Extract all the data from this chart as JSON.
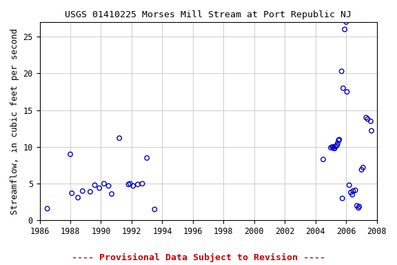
{
  "title": "USGS 01410225 Morses Mill Stream at Port Republic NJ",
  "xlabel": "",
  "ylabel": "Streamflow, in cubic feet per second",
  "xlim": [
    1986,
    2008
  ],
  "ylim": [
    0,
    27
  ],
  "yticks": [
    0,
    5,
    10,
    15,
    20,
    25
  ],
  "xticks": [
    1986,
    1988,
    1990,
    1992,
    1994,
    1996,
    1998,
    2000,
    2002,
    2004,
    2006,
    2008
  ],
  "footnote": "---- Provisional Data Subject to Revision ----",
  "footnote_color": "#cc0000",
  "marker_color": "#0000cc",
  "background_color": "#ffffff",
  "grid_color": "#cccccc",
  "x": [
    1986.5,
    1988.0,
    1988.1,
    1988.5,
    1988.8,
    1989.3,
    1989.6,
    1989.9,
    1990.2,
    1990.5,
    1990.7,
    1991.2,
    1991.8,
    1991.9,
    1992.1,
    1992.4,
    1992.7,
    1993.0,
    1993.5,
    2004.5,
    2005.0,
    2005.1,
    2005.15,
    2005.2,
    2005.25,
    2005.3,
    2005.4,
    2005.45,
    2005.5,
    2005.55,
    2005.7,
    2005.75,
    2005.8,
    2005.9,
    2006.0,
    2006.05,
    2006.2,
    2006.3,
    2006.4,
    2006.45,
    2006.6,
    2006.7,
    2006.8,
    2006.85,
    2007.0,
    2007.1,
    2007.3,
    2007.4,
    2007.6,
    2007.65
  ],
  "y": [
    1.6,
    9.0,
    3.7,
    3.1,
    4.0,
    3.9,
    4.8,
    4.4,
    5.0,
    4.7,
    3.6,
    11.2,
    4.9,
    5.0,
    4.7,
    4.9,
    5.0,
    8.5,
    1.5,
    8.3,
    9.9,
    10.0,
    10.0,
    9.8,
    9.8,
    10.1,
    10.2,
    10.5,
    10.9,
    11.0,
    20.3,
    3.0,
    18.0,
    26.0,
    27.0,
    17.5,
    4.8,
    3.8,
    3.5,
    4.0,
    4.1,
    2.0,
    1.7,
    1.9,
    6.9,
    7.2,
    14.0,
    13.8,
    13.5,
    12.2
  ],
  "title_fontsize": 9.5,
  "label_fontsize": 9,
  "tick_fontsize": 8.5,
  "footnote_fontsize": 9.5
}
